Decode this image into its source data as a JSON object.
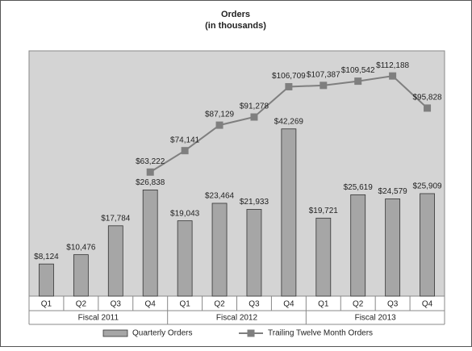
{
  "chart_data": {
    "type": "bar_line",
    "title": "Orders",
    "subtitle": "(in thousands)",
    "categories": [
      "Q1",
      "Q2",
      "Q3",
      "Q4",
      "Q1",
      "Q2",
      "Q3",
      "Q4",
      "Q1",
      "Q2",
      "Q3",
      "Q4"
    ],
    "groups": [
      "Fiscal 2011",
      "Fiscal 2012",
      "Fiscal 2013"
    ],
    "series": [
      {
        "name": "Quarterly Orders",
        "type": "bar",
        "color": "#a6a6a6",
        "values": [
          8124,
          10476,
          17784,
          26838,
          19043,
          23464,
          21933,
          42269,
          19721,
          25619,
          24579,
          25909
        ],
        "value_labels": [
          "$8,124",
          "$10,476",
          "$17,784",
          "$26,838",
          "$19,043",
          "$23,464",
          "$21,933",
          "$42,269",
          "$19,721",
          "$25,619",
          "$24,579",
          "$25,909"
        ]
      },
      {
        "name": "Trailing Twelve Month Orders",
        "type": "line",
        "axis": "y2",
        "color": "#7f7f7f",
        "values": [
          null,
          null,
          null,
          63222,
          74141,
          87129,
          91278,
          106709,
          107387,
          109542,
          112188,
          95828
        ],
        "value_labels": [
          null,
          null,
          null,
          "$63,222",
          "$74,141",
          "$87,129",
          "$91,278",
          "$106,709",
          "$107,387",
          "$109,542",
          "$112,188",
          "$95,828"
        ]
      }
    ],
    "ylim": [
      0,
      62000
    ],
    "y2lim": [
      0,
      125000
    ],
    "legend": "bottom"
  }
}
